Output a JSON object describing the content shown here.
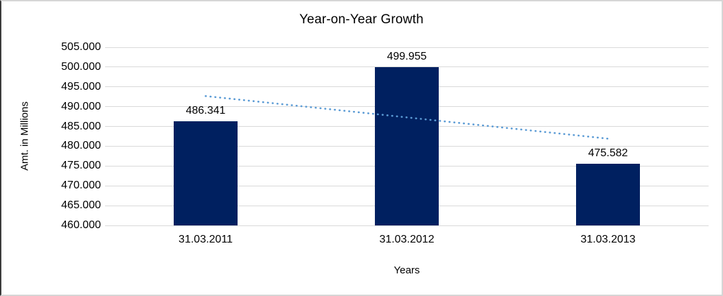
{
  "chart_data": {
    "type": "bar",
    "title": "Year-on-Year Growth",
    "xlabel": "Years",
    "ylabel": "Amt. in Millions",
    "categories": [
      "31.03.2011",
      "31.03.2012",
      "31.03.2013"
    ],
    "values": [
      486341,
      499955,
      475582
    ],
    "bar_labels": [
      "486.341",
      "499.955",
      "475.582"
    ],
    "y_ticks": [
      "505.000",
      "500.000",
      "495.000",
      "490.000",
      "485.000",
      "480.000",
      "475.000",
      "470.000",
      "465.000",
      "460.000"
    ],
    "ylim": [
      460000,
      505000
    ],
    "grid": "horizontal",
    "legend": "none",
    "bar_color": "#002060",
    "gridline_color": "#d9d9d9",
    "trendline": {
      "type": "linear",
      "style": "dotted",
      "color": "#5b9bd5",
      "values": [
        492672,
        481913
      ]
    }
  }
}
